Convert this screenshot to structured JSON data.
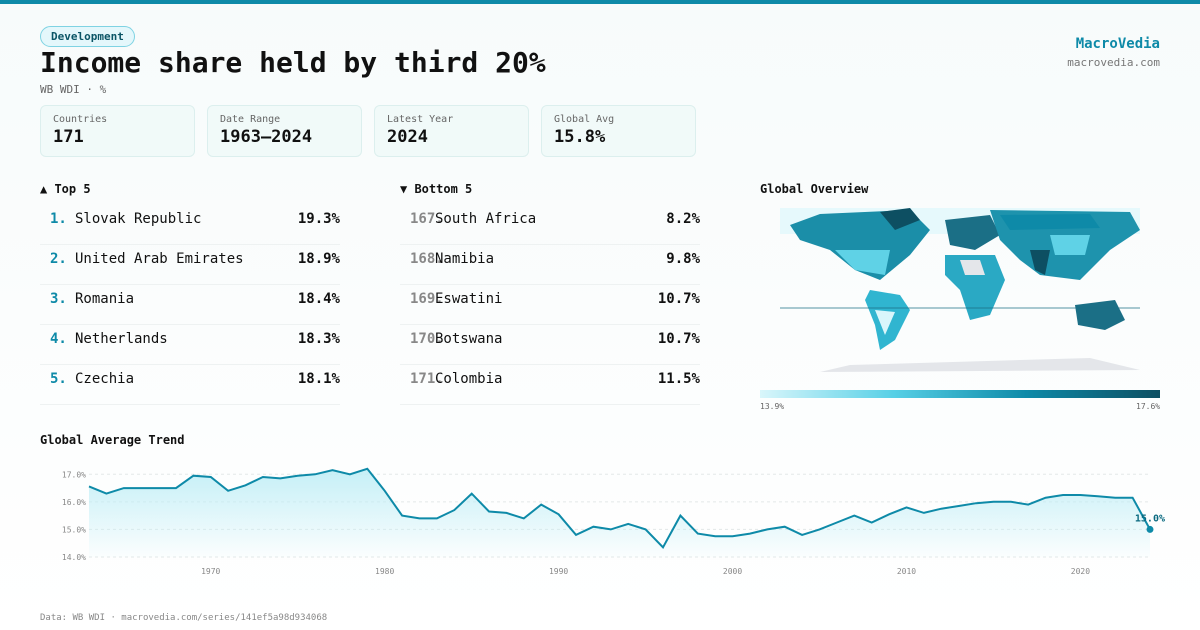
{
  "badge": "Development",
  "title": "Income share held by third 20%",
  "subtitle": "WB WDI · %",
  "brand": {
    "name": "MacroVedia",
    "url": "macrovedia.com"
  },
  "stats": [
    {
      "label": "Countries",
      "value": "171"
    },
    {
      "label": "Date Range",
      "value": "1963–2024"
    },
    {
      "label": "Latest Year",
      "value": "2024"
    },
    {
      "label": "Global Avg",
      "value": "15.8%"
    }
  ],
  "top5": {
    "title": "▲ Top 5",
    "rows": [
      {
        "rank": "1.",
        "name": "Slovak Republic",
        "value": "19.3%"
      },
      {
        "rank": "2.",
        "name": "United Arab Emirates",
        "value": "18.9%"
      },
      {
        "rank": "3.",
        "name": "Romania",
        "value": "18.4%"
      },
      {
        "rank": "4.",
        "name": "Netherlands",
        "value": "18.3%"
      },
      {
        "rank": "5.",
        "name": "Czechia",
        "value": "18.1%"
      }
    ]
  },
  "bottom5": {
    "title": "▼ Bottom 5",
    "rows": [
      {
        "rank": "167.",
        "name": "South Africa",
        "value": "8.2%"
      },
      {
        "rank": "168.",
        "name": "Namibia",
        "value": "9.8%"
      },
      {
        "rank": "169.",
        "name": "Eswatini",
        "value": "10.7%"
      },
      {
        "rank": "170.",
        "name": "Botswana",
        "value": "10.7%"
      },
      {
        "rank": "171.",
        "name": "Colombia",
        "value": "11.5%"
      }
    ]
  },
  "map": {
    "title": "Global Overview",
    "min_label": "13.9%",
    "max_label": "17.6%"
  },
  "chart_data": {
    "type": "line",
    "title": "Global Average Trend",
    "x": [
      1963,
      1964,
      1965,
      1966,
      1967,
      1968,
      1969,
      1970,
      1971,
      1972,
      1973,
      1974,
      1975,
      1976,
      1977,
      1978,
      1979,
      1980,
      1981,
      1982,
      1983,
      1984,
      1985,
      1986,
      1987,
      1988,
      1989,
      1990,
      1991,
      1992,
      1993,
      1994,
      1995,
      1996,
      1997,
      1998,
      1999,
      2000,
      2001,
      2002,
      2003,
      2004,
      2005,
      2006,
      2007,
      2008,
      2009,
      2010,
      2011,
      2012,
      2013,
      2014,
      2015,
      2016,
      2017,
      2018,
      2019,
      2020,
      2021,
      2022,
      2023,
      2024
    ],
    "values": [
      16.56,
      16.3,
      16.5,
      16.5,
      16.5,
      16.5,
      16.95,
      16.9,
      16.4,
      16.6,
      16.9,
      16.85,
      16.95,
      17.0,
      17.15,
      17.0,
      17.2,
      16.4,
      15.5,
      15.4,
      15.4,
      15.7,
      16.3,
      15.65,
      15.6,
      15.4,
      15.9,
      15.55,
      14.8,
      15.1,
      15.0,
      15.2,
      15.0,
      14.35,
      15.5,
      14.85,
      14.75,
      14.75,
      14.85,
      15.0,
      15.1,
      14.8,
      15.0,
      15.25,
      15.5,
      15.25,
      15.55,
      15.8,
      15.6,
      15.75,
      15.85,
      15.95,
      16.0,
      16.0,
      15.9,
      16.15,
      16.25,
      16.25,
      16.2,
      16.15,
      16.15,
      15.0
    ],
    "value_labels": [
      null,
      null,
      null,
      null,
      null,
      null,
      null,
      null,
      null,
      null,
      null,
      null,
      null,
      null,
      null,
      null,
      null,
      null,
      null,
      null,
      null,
      null,
      null,
      null,
      null,
      null,
      null,
      null,
      null,
      null,
      null,
      null,
      null,
      null,
      null,
      null,
      null,
      null,
      null,
      null,
      null,
      null,
      null,
      null,
      null,
      null,
      null,
      null,
      null,
      null,
      null,
      null,
      null,
      null,
      null,
      null,
      null,
      null,
      null,
      null,
      null,
      "15.0%"
    ],
    "color": "#0e8aa8",
    "xlim": [
      1963,
      2024
    ],
    "ylim": [
      14,
      17.3
    ],
    "xticks": [
      1970,
      1980,
      1990,
      2000,
      2010,
      2020
    ],
    "yticks": [
      {
        "value": 14,
        "label": "14.0%"
      },
      {
        "value": 15,
        "label": "15.0%"
      },
      {
        "value": 16,
        "label": "16.0%"
      },
      {
        "value": 17,
        "label": "17.0%"
      }
    ],
    "grid": true
  },
  "footer": "Data: WB WDI · macrovedia.com/series/141ef5a98d934068"
}
